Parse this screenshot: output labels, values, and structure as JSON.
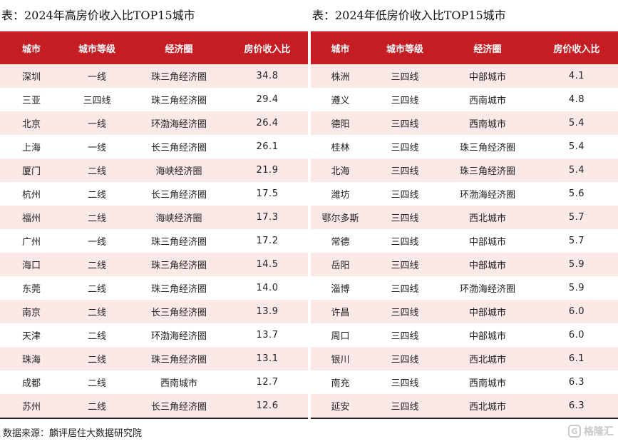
{
  "left": {
    "title": "表：2024年高房价收入比TOP15城市",
    "headers": [
      "城市",
      "城市等级",
      "经济圈",
      "房价收入比"
    ],
    "rows": [
      [
        "深圳",
        "一线",
        "珠三角经济圈",
        "34.8"
      ],
      [
        "三亚",
        "三四线",
        "珠三角经济圈",
        "29.4"
      ],
      [
        "北京",
        "一线",
        "环渤海经济圈",
        "26.4"
      ],
      [
        "上海",
        "一线",
        "长三角经济圈",
        "26.1"
      ],
      [
        "厦门",
        "二线",
        "海峡经济圈",
        "21.9"
      ],
      [
        "杭州",
        "二线",
        "长三角经济圈",
        "17.5"
      ],
      [
        "福州",
        "二线",
        "海峡经济圈",
        "17.3"
      ],
      [
        "广州",
        "一线",
        "珠三角经济圈",
        "17.2"
      ],
      [
        "海口",
        "二线",
        "珠三角经济圈",
        "14.5"
      ],
      [
        "东莞",
        "二线",
        "珠三角经济圈",
        "14.0"
      ],
      [
        "南京",
        "二线",
        "长三角经济圈",
        "13.9"
      ],
      [
        "天津",
        "二线",
        "环渤海经济圈",
        "13.7"
      ],
      [
        "珠海",
        "二线",
        "珠三角经济圈",
        "13.1"
      ],
      [
        "成都",
        "二线",
        "西南城市",
        "12.7"
      ],
      [
        "苏州",
        "二线",
        "长三角经济圈",
        "12.6"
      ]
    ]
  },
  "right": {
    "title": "表：2024年低房价收入比TOP15城市",
    "headers": [
      "城市",
      "城市等级",
      "经济圈",
      "房价收入比"
    ],
    "rows": [
      [
        "株洲",
        "三四线",
        "中部城市",
        "4.1"
      ],
      [
        "遵义",
        "三四线",
        "西南城市",
        "4.8"
      ],
      [
        "德阳",
        "三四线",
        "西南城市",
        "5.4"
      ],
      [
        "桂林",
        "三四线",
        "珠三角经济圈",
        "5.4"
      ],
      [
        "北海",
        "三四线",
        "珠三角经济圈",
        "5.4"
      ],
      [
        "潍坊",
        "三四线",
        "环渤海经济圈",
        "5.6"
      ],
      [
        "鄂尔多斯",
        "三四线",
        "西北城市",
        "5.7"
      ],
      [
        "常德",
        "三四线",
        "中部城市",
        "5.7"
      ],
      [
        "岳阳",
        "三四线",
        "中部城市",
        "5.9"
      ],
      [
        "淄博",
        "三四线",
        "环渤海经济圈",
        "5.9"
      ],
      [
        "许昌",
        "三四线",
        "中部城市",
        "6.0"
      ],
      [
        "周口",
        "三四线",
        "中部城市",
        "6.0"
      ],
      [
        "银川",
        "三四线",
        "西北城市",
        "6.1"
      ],
      [
        "南充",
        "三四线",
        "西南城市",
        "6.3"
      ],
      [
        "延安",
        "三四线",
        "西北城市",
        "6.3"
      ]
    ]
  },
  "source": "数据来源：麟评居住大数据研究院",
  "watermark": {
    "icon": "G",
    "text": "格隆汇"
  },
  "colors": {
    "header_bg": "#c41d23",
    "row_alt_bg": "#fbe9e7"
  }
}
